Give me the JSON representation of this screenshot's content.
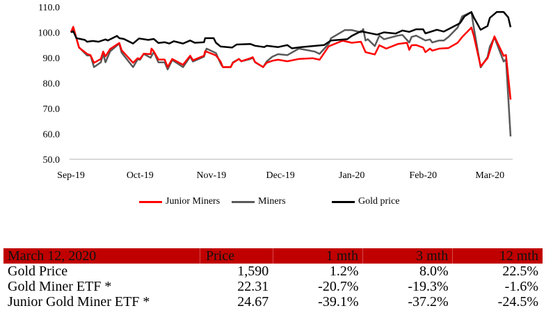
{
  "chart_data": {
    "type": "line",
    "title": "",
    "xlabel": "",
    "ylabel": "",
    "ylim": [
      50,
      110
    ],
    "yticks": [
      "50.0",
      "60.0",
      "70.0",
      "80.0",
      "90.0",
      "100.0",
      "110.0"
    ],
    "x_unit": "days since 1 Sep 2019",
    "xlim": [
      0,
      191
    ],
    "xticks": [
      {
        "label": "Sep-19",
        "day": 0
      },
      {
        "label": "Oct-19",
        "day": 30
      },
      {
        "label": "Nov-19",
        "day": 61
      },
      {
        "label": "Dec-19",
        "day": 91
      },
      {
        "label": "Jan-20",
        "day": 122
      },
      {
        "label": "Feb-20",
        "day": 153
      },
      {
        "label": "Mar-20",
        "day": 182
      }
    ],
    "legend_position": "bottom",
    "series": [
      {
        "name": "Junior Miners",
        "color": "#ff0000",
        "points": [
          [
            0,
            100
          ],
          [
            1,
            102.2
          ],
          [
            3.5,
            94
          ],
          [
            7,
            91.5
          ],
          [
            8.5,
            91
          ],
          [
            10,
            88
          ],
          [
            13,
            89.5
          ],
          [
            14,
            92.4
          ],
          [
            15,
            90.5
          ],
          [
            17,
            93.4
          ],
          [
            21,
            95.8
          ],
          [
            22,
            93
          ],
          [
            27,
            88
          ],
          [
            29,
            89.8
          ],
          [
            30,
            89.5
          ],
          [
            31.6,
            91.6
          ],
          [
            34.6,
            91.4
          ],
          [
            35,
            93.6
          ],
          [
            36,
            92.5
          ],
          [
            38,
            89.3
          ],
          [
            40.7,
            89.3
          ],
          [
            42,
            86.3
          ],
          [
            44,
            89.5
          ],
          [
            48.7,
            87.2
          ],
          [
            51.8,
            90.8
          ],
          [
            53,
            89
          ],
          [
            57.8,
            90.8
          ],
          [
            58.3,
            92.6
          ],
          [
            63,
            90.9
          ],
          [
            65,
            88.5
          ],
          [
            66,
            86.3
          ],
          [
            69.4,
            86.3
          ],
          [
            70.4,
            88
          ],
          [
            73,
            89.5
          ],
          [
            74,
            88.6
          ],
          [
            78,
            89.8
          ],
          [
            79,
            90.2
          ],
          [
            80,
            88.3
          ],
          [
            83.5,
            86.3
          ],
          [
            85,
            88
          ],
          [
            87.5,
            88.8
          ],
          [
            90,
            89.2
          ],
          [
            94,
            88.6
          ],
          [
            99,
            89.5
          ],
          [
            105,
            89.8
          ],
          [
            108,
            89.2
          ],
          [
            112,
            94.5
          ],
          [
            118,
            96.7
          ],
          [
            122,
            95.9
          ],
          [
            126,
            96.3
          ],
          [
            128,
            92.2
          ],
          [
            132,
            91.3
          ],
          [
            134,
            94.9
          ],
          [
            137,
            93.6
          ],
          [
            142,
            95.4
          ],
          [
            146,
            95.9
          ],
          [
            147,
            93.1
          ],
          [
            148,
            94.9
          ],
          [
            150,
            95
          ],
          [
            153,
            94
          ],
          [
            154,
            92.2
          ],
          [
            156,
            93.6
          ],
          [
            157,
            92.8
          ],
          [
            160,
            93.6
          ],
          [
            164,
            93.8
          ],
          [
            168,
            95.9
          ],
          [
            170,
            98.2
          ],
          [
            174,
            101.9
          ],
          [
            175,
            98.7
          ],
          [
            178,
            86.6
          ],
          [
            181,
            89.8
          ],
          [
            184,
            98.4
          ],
          [
            188,
            90.7
          ],
          [
            189,
            91.1
          ],
          [
            191,
            73.5
          ]
        ]
      },
      {
        "name": "Miners",
        "color": "#595959",
        "points": [
          [
            0,
            100
          ],
          [
            1,
            101.8
          ],
          [
            3.5,
            94.1
          ],
          [
            7,
            90.9
          ],
          [
            8.5,
            90.9
          ],
          [
            10,
            86.3
          ],
          [
            13,
            88.2
          ],
          [
            14,
            91.5
          ],
          [
            15,
            88.2
          ],
          [
            17,
            92.5
          ],
          [
            21,
            95.6
          ],
          [
            22,
            92
          ],
          [
            27,
            86.3
          ],
          [
            29,
            89.4
          ],
          [
            30,
            89.2
          ],
          [
            31.6,
            91.5
          ],
          [
            34.6,
            90
          ],
          [
            36,
            92.3
          ],
          [
            38,
            88.2
          ],
          [
            40.7,
            88.2
          ],
          [
            42,
            85.4
          ],
          [
            44,
            89.1
          ],
          [
            48.7,
            86.3
          ],
          [
            51.8,
            90.4
          ],
          [
            53,
            88.5
          ],
          [
            57.8,
            90.4
          ],
          [
            58.9,
            93.6
          ],
          [
            63,
            91.8
          ],
          [
            65,
            87.7
          ],
          [
            66,
            86.3
          ],
          [
            69.4,
            86.3
          ],
          [
            70.4,
            88.2
          ],
          [
            73,
            89.5
          ],
          [
            74,
            88.6
          ],
          [
            78,
            89.5
          ],
          [
            79,
            90
          ],
          [
            80,
            88.2
          ],
          [
            83.5,
            86.3
          ],
          [
            85,
            88.5
          ],
          [
            87.5,
            90.4
          ],
          [
            90,
            91.4
          ],
          [
            94,
            91
          ],
          [
            99,
            93.6
          ],
          [
            106,
            92.4
          ],
          [
            108,
            91.5
          ],
          [
            112,
            95.5
          ],
          [
            113,
            97.7
          ],
          [
            119,
            100.9
          ],
          [
            122,
            100.9
          ],
          [
            126,
            100
          ],
          [
            127,
            101.3
          ],
          [
            128,
            96.8
          ],
          [
            129,
            97.3
          ],
          [
            132,
            94.6
          ],
          [
            134,
            98.7
          ],
          [
            136,
            97.3
          ],
          [
            142,
            98.7
          ],
          [
            144,
            99
          ],
          [
            147,
            96
          ],
          [
            148,
            98.2
          ],
          [
            150,
            98.7
          ],
          [
            154,
            96.8
          ],
          [
            156,
            97.2
          ],
          [
            157,
            96
          ],
          [
            160,
            96.8
          ],
          [
            162,
            96.8
          ],
          [
            164,
            98.2
          ],
          [
            168,
            101.9
          ],
          [
            170,
            106.3
          ],
          [
            174,
            108
          ],
          [
            175,
            101.9
          ],
          [
            178,
            86.2
          ],
          [
            181,
            90.3
          ],
          [
            182,
            94.4
          ],
          [
            184,
            98
          ],
          [
            188,
            88.5
          ],
          [
            189,
            89.4
          ],
          [
            191,
            59
          ]
        ]
      },
      {
        "name": "Gold price",
        "color": "#000000",
        "points": [
          [
            0,
            100
          ],
          [
            1,
            100.4
          ],
          [
            2.4,
            97.7
          ],
          [
            6,
            97
          ],
          [
            7,
            96.3
          ],
          [
            9.5,
            96.6
          ],
          [
            12,
            96.3
          ],
          [
            15,
            97.2
          ],
          [
            16,
            96.8
          ],
          [
            20,
            98.6
          ],
          [
            21,
            97.7
          ],
          [
            23,
            97.4
          ],
          [
            27,
            95.6
          ],
          [
            29.6,
            97.6
          ],
          [
            33.6,
            97
          ],
          [
            36,
            97.4
          ],
          [
            38,
            95.8
          ],
          [
            40.7,
            96.1
          ],
          [
            42.7,
            95.6
          ],
          [
            44.7,
            96.5
          ],
          [
            48.7,
            95.6
          ],
          [
            51.8,
            96.8
          ],
          [
            53.8,
            95.9
          ],
          [
            57.8,
            96.1
          ],
          [
            58.3,
            97.7
          ],
          [
            62,
            97.7
          ],
          [
            63,
            95.9
          ],
          [
            65,
            94.4
          ],
          [
            70,
            94
          ],
          [
            72,
            95.2
          ],
          [
            78,
            95.4
          ],
          [
            80,
            94.7
          ],
          [
            84,
            94.2
          ],
          [
            85,
            94.7
          ],
          [
            90,
            94.2
          ],
          [
            94,
            95
          ],
          [
            96,
            93.7
          ],
          [
            100,
            94.2
          ],
          [
            110,
            95
          ],
          [
            113,
            96.8
          ],
          [
            120,
            97.3
          ],
          [
            122,
            98.6
          ],
          [
            126,
            100.4
          ],
          [
            133,
            99.1
          ],
          [
            136,
            100
          ],
          [
            141,
            99.5
          ],
          [
            144,
            100.7
          ],
          [
            147,
            100.2
          ],
          [
            150,
            101.2
          ],
          [
            153,
            101.2
          ],
          [
            154,
            99.6
          ],
          [
            159,
            101
          ],
          [
            162,
            100.3
          ],
          [
            165,
            101.7
          ],
          [
            169,
            103.6
          ],
          [
            171,
            106.3
          ],
          [
            174,
            108
          ],
          [
            175,
            105.9
          ],
          [
            178,
            101
          ],
          [
            181,
            102.5
          ],
          [
            182,
            105.7
          ],
          [
            185,
            108
          ],
          [
            188,
            108
          ],
          [
            190,
            105.9
          ],
          [
            191,
            102
          ]
        ]
      }
    ]
  },
  "table": {
    "headers": [
      "March 12, 2020",
      "Price",
      "1 mth",
      "3 mth",
      "12 mth"
    ],
    "rows": [
      [
        "Gold Price",
        "1,590",
        "1.2%",
        "8.0%",
        "22.5%"
      ],
      [
        "Gold Miner ETF *",
        "22.31",
        "-20.7%",
        "-19.3%",
        "-1.6%"
      ],
      [
        "Junior Gold Miner ETF *",
        "24.67",
        "-39.1%",
        "-37.2%",
        "-24.5%"
      ]
    ],
    "header_color": "#c00000"
  }
}
